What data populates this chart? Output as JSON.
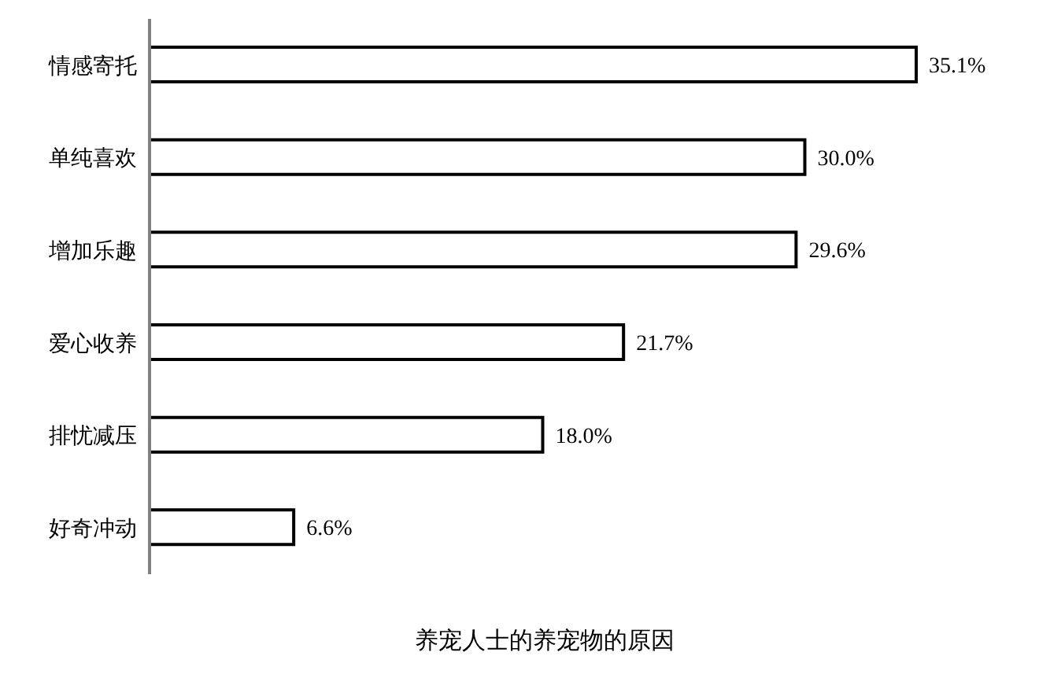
{
  "chart_data": {
    "type": "bar",
    "orientation": "horizontal",
    "title": "养宠人士的养宠物的原因",
    "categories": [
      "情感寄托",
      "单纯喜欢",
      "增加乐趣",
      "爱心收养",
      "排忧减压",
      "好奇冲动"
    ],
    "values": [
      35.1,
      30.0,
      29.6,
      21.7,
      18.0,
      6.6
    ],
    "value_labels": [
      "35.1%",
      "30.0%",
      "29.6%",
      "21.7%",
      "18.0%",
      "6.6%"
    ],
    "color": "#ffffff"
  }
}
